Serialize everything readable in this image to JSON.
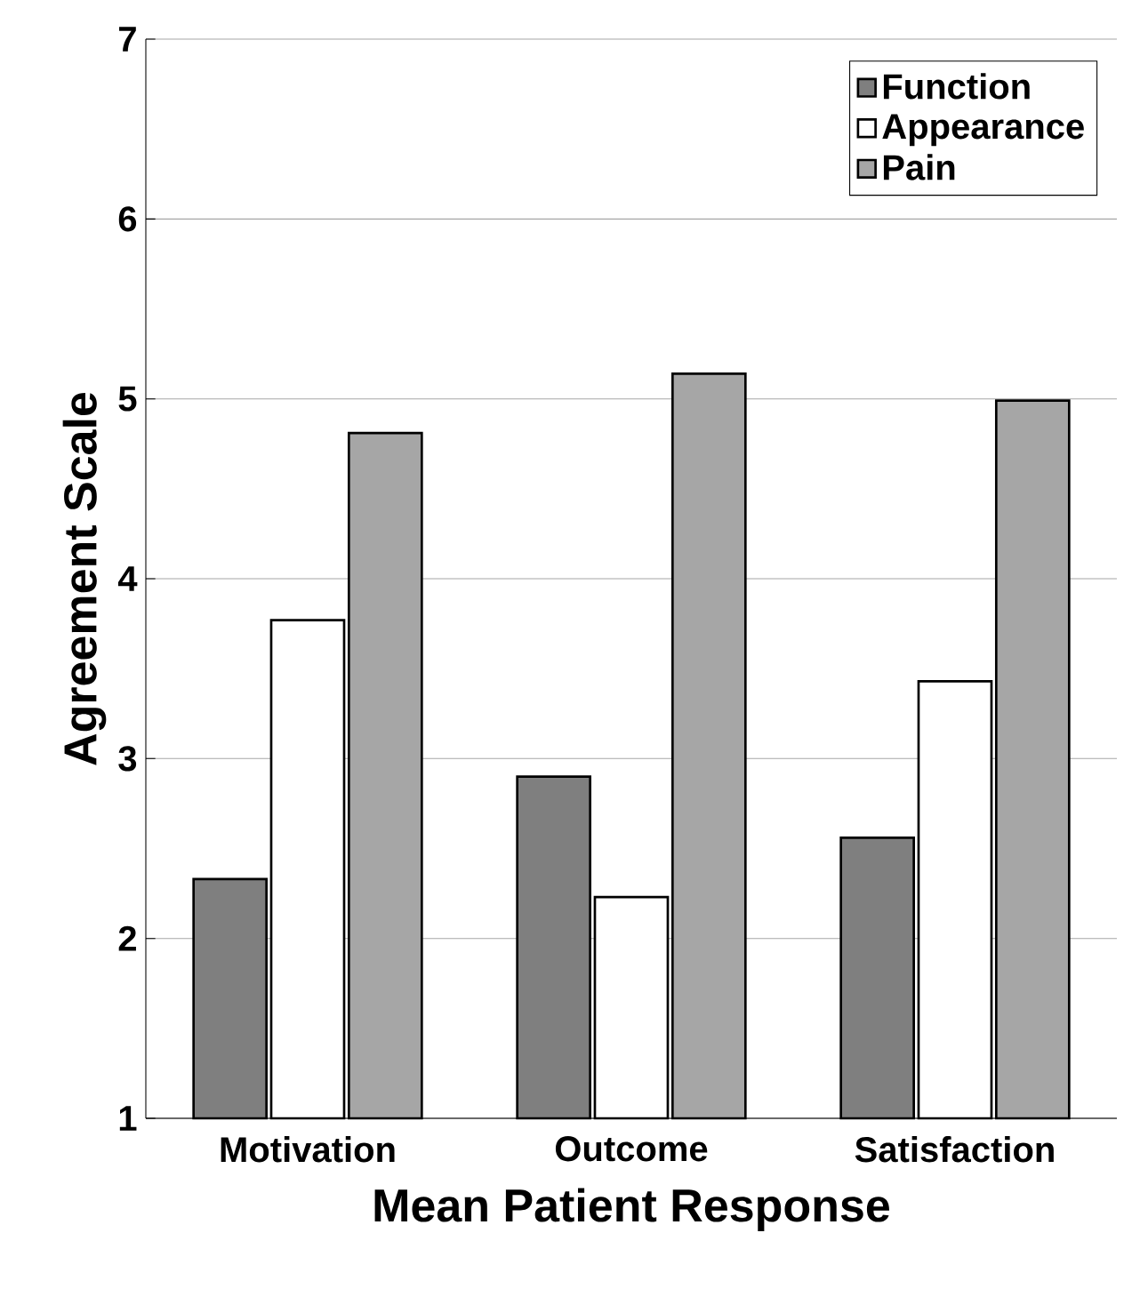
{
  "chart_data": {
    "type": "bar",
    "xlabel": "Mean Patient Response",
    "ylabel": "Agreement Scale",
    "categories": [
      "Motivation",
      "Outcome",
      "Satisfaction"
    ],
    "series": [
      {
        "name": "Function",
        "color": "#7f7f7f",
        "values": [
          2.33,
          2.9,
          2.56
        ]
      },
      {
        "name": "Appearance",
        "color": "#ffffff",
        "values": [
          3.77,
          2.23,
          3.43
        ]
      },
      {
        "name": "Pain",
        "color": "#a6a6a6",
        "values": [
          4.81,
          5.14,
          4.99
        ]
      }
    ],
    "ylim": [
      1,
      7
    ],
    "yticks": [
      1,
      2,
      3,
      4,
      5,
      6,
      7
    ],
    "grid": "y",
    "legend": "top right"
  }
}
